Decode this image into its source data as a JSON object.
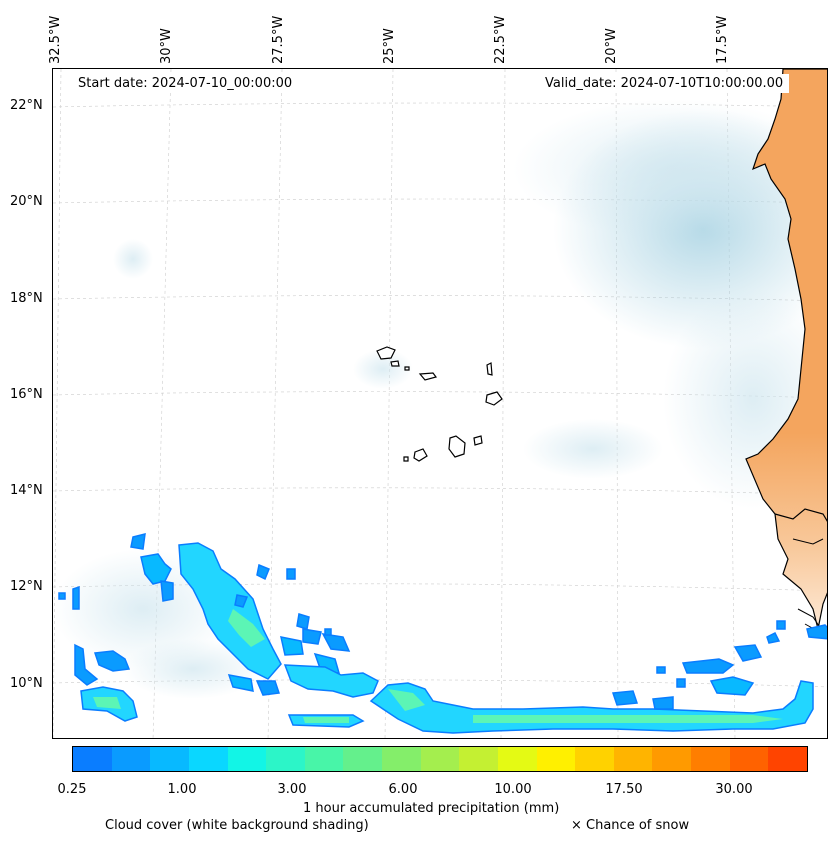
{
  "map": {
    "start_date_label": "Start date: 2024-07-10_00:00:00",
    "valid_date_label": "Valid_date: 2024-07-10T10:00:00.00",
    "lon_ticks": [
      "32.5°W",
      "30°W",
      "27.5°W",
      "25°W",
      "22.5°W",
      "20°W",
      "17.5°W"
    ],
    "lat_ticks": [
      "22°N",
      "20°N",
      "18°N",
      "16°N",
      "14°N",
      "12°N",
      "10°N"
    ],
    "colors": {
      "land": "#f4a55e",
      "land_light": "#fbd7b4",
      "coast": "#000000",
      "cloud": "#a9d3e3",
      "grid": "#cccccc",
      "precip_low": "#0a7dff",
      "precip_mid": "#22d6ff",
      "precip_high": "#5cf5b5"
    }
  },
  "colorbar": {
    "tick_labels": [
      "0.25",
      "1.00",
      "3.00",
      "6.00",
      "10.00",
      "17.50",
      "30.00"
    ],
    "colors": [
      "#0a7dff",
      "#0a9bff",
      "#08b9ff",
      "#0ad7ff",
      "#12f5e6",
      "#2cf5c8",
      "#48f5a8",
      "#64f08c",
      "#84ee6a",
      "#a4ee4e",
      "#c4f032",
      "#e4fa14",
      "#fff000",
      "#ffd200",
      "#ffb400",
      "#ff9a00",
      "#ff7e00",
      "#ff6200",
      "#ff4400"
    ],
    "label": "1 hour accumulated precipitation (mm)"
  },
  "legend": {
    "cloud_caption": "Cloud cover (white background shading)",
    "snow_caption": "× Chance of snow"
  }
}
